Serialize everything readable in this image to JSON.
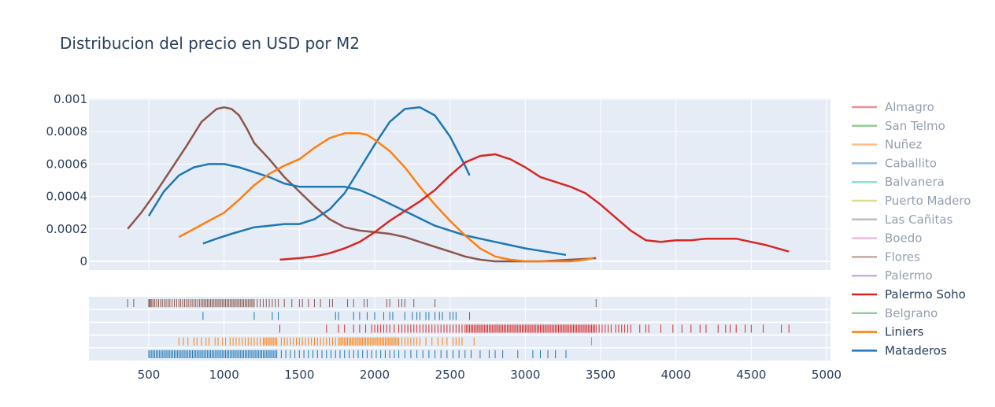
{
  "chart_data": {
    "type": "line",
    "title": "Distribucion del precio en USD por M2",
    "xlabel": "",
    "ylabel": "",
    "xlim": [
      0,
      5000
    ],
    "ylim": [
      0,
      0.001
    ],
    "x_ticks": [
      "500",
      "1000",
      "1500",
      "2000",
      "2500",
      "3000",
      "3500",
      "4000",
      "4500",
      "5000"
    ],
    "y_ticks": [
      "0",
      "0.0002",
      "0.0004",
      "0.0006",
      "0.0008",
      "0.001"
    ],
    "grid": true,
    "legend_position": "right",
    "legend": [
      {
        "name": "Almagro",
        "color": "#d62728",
        "visible": false
      },
      {
        "name": "San Telmo",
        "color": "#2ca02c",
        "visible": false
      },
      {
        "name": "Nuñez",
        "color": "#ff7f0e",
        "visible": false
      },
      {
        "name": "Caballito",
        "color": "#1f77b4",
        "visible": false
      },
      {
        "name": "Balvanera",
        "color": "#17becf",
        "visible": false
      },
      {
        "name": "Puerto Madero",
        "color": "#bcbd22",
        "visible": false
      },
      {
        "name": "Las Cañitas",
        "color": "#7f7f7f",
        "visible": false
      },
      {
        "name": "Boedo",
        "color": "#e377c2",
        "visible": false
      },
      {
        "name": "Flores",
        "color": "#8c564b",
        "visible": false
      },
      {
        "name": "Palermo",
        "color": "#9467bd",
        "visible": false
      },
      {
        "name": "Palermo Soho",
        "color": "#d62728",
        "visible": true
      },
      {
        "name": "Belgrano",
        "color": "#2ca02c",
        "visible": false
      },
      {
        "name": "Liniers",
        "color": "#ff7f0e",
        "visible": true
      },
      {
        "name": "Mataderos",
        "color": "#1f77b4",
        "visible": true
      }
    ],
    "series": [
      {
        "legend": "Flores",
        "color": "#8c564b",
        "x": [
          360,
          450,
          550,
          650,
          750,
          850,
          950,
          1000,
          1050,
          1100,
          1150,
          1200,
          1300,
          1400,
          1500,
          1600,
          1700,
          1800,
          1900,
          2000,
          2100,
          2200,
          2300,
          2400,
          2500,
          2600,
          2700,
          2800,
          2900,
          3000,
          3100,
          3200,
          3300,
          3400,
          3470
        ],
        "y": [
          0.0002,
          0.0003,
          0.00043,
          0.00057,
          0.00071,
          0.00086,
          0.00094,
          0.00095,
          0.00094,
          0.0009,
          0.00082,
          0.00073,
          0.00063,
          0.00052,
          0.00043,
          0.00034,
          0.00026,
          0.00021,
          0.00019,
          0.00018,
          0.00017,
          0.00015,
          0.00012,
          9e-05,
          6e-05,
          3e-05,
          1e-05,
          0.0,
          0.0,
          0.0,
          0.0,
          5e-06,
          1e-05,
          1.5e-05,
          2e-05
        ]
      },
      {
        "legend": "Mataderos",
        "color": "#1f77b4",
        "x": [
          500,
          600,
          700,
          800,
          900,
          1000,
          1100,
          1200,
          1300,
          1400,
          1500,
          1600,
          1700,
          1800,
          1900,
          2000,
          2200,
          2400,
          2600,
          2800,
          3000,
          3200,
          3270
        ],
        "y": [
          0.00028,
          0.00043,
          0.00053,
          0.00058,
          0.0006,
          0.0006,
          0.00058,
          0.00055,
          0.00052,
          0.00048,
          0.00046,
          0.00046,
          0.00046,
          0.00046,
          0.00044,
          0.0004,
          0.00031,
          0.00022,
          0.00016,
          0.00012,
          8e-05,
          5e-05,
          4e-05
        ]
      },
      {
        "legend": "Mataderos",
        "color": "#1f77b4",
        "x": [
          860,
          950,
          1050,
          1200,
          1300,
          1400,
          1500,
          1600,
          1700,
          1800,
          1900,
          2000,
          2100,
          2200,
          2300,
          2400,
          2500,
          2600,
          2630
        ],
        "y": [
          0.00011,
          0.00014,
          0.00017,
          0.00021,
          0.00022,
          0.00023,
          0.00023,
          0.00026,
          0.00032,
          0.00042,
          0.00057,
          0.00072,
          0.00086,
          0.00094,
          0.00095,
          0.0009,
          0.00077,
          0.00059,
          0.00053
        ]
      },
      {
        "legend": "Liniers",
        "color": "#ff7f0e",
        "x": [
          700,
          800,
          900,
          1000,
          1100,
          1200,
          1300,
          1400,
          1500,
          1600,
          1700,
          1800,
          1900,
          1950,
          2000,
          2100,
          2200,
          2300,
          2400,
          2500,
          2600,
          2700,
          2800,
          2900,
          3000,
          3100,
          3200,
          3300,
          3400,
          3450
        ],
        "y": [
          0.00015,
          0.0002,
          0.00025,
          0.0003,
          0.00038,
          0.00047,
          0.00054,
          0.00059,
          0.00063,
          0.0007,
          0.00076,
          0.00079,
          0.00079,
          0.00078,
          0.00075,
          0.00068,
          0.00058,
          0.00046,
          0.00035,
          0.00025,
          0.00016,
          8e-05,
          3e-05,
          1e-05,
          0.0,
          0.0,
          0.0,
          0.0,
          1e-05,
          2e-05
        ]
      },
      {
        "legend": "Palermo Soho",
        "color": "#d62728",
        "x": [
          1370,
          1500,
          1600,
          1700,
          1800,
          1900,
          2000,
          2100,
          2200,
          2300,
          2400,
          2500,
          2600,
          2700,
          2800,
          2900,
          3000,
          3100,
          3200,
          3300,
          3400,
          3500,
          3600,
          3700,
          3800,
          3900,
          4000,
          4100,
          4200,
          4300,
          4400,
          4500,
          4600,
          4750
        ],
        "y": [
          1e-05,
          2e-05,
          3e-05,
          5e-05,
          8e-05,
          0.00012,
          0.00018,
          0.00025,
          0.00031,
          0.00037,
          0.00044,
          0.00053,
          0.00061,
          0.00065,
          0.00066,
          0.00063,
          0.00058,
          0.00052,
          0.00049,
          0.00046,
          0.00042,
          0.00035,
          0.00027,
          0.00019,
          0.00013,
          0.00012,
          0.00013,
          0.00013,
          0.00014,
          0.00014,
          0.00014,
          0.00012,
          0.0001,
          6e-05
        ]
      }
    ],
    "rug": [
      {
        "legend": "Flores",
        "color": "#8c564b",
        "x": [
          360,
          400,
          500,
          505,
          512,
          520,
          530,
          540,
          552,
          565,
          578,
          590,
          603,
          615,
          628,
          640,
          655,
          670,
          685,
          700,
          712,
          725,
          738,
          750,
          762,
          775,
          788,
          800,
          812,
          825,
          838,
          850,
          860,
          870,
          880,
          890,
          900,
          910,
          920,
          930,
          940,
          950,
          960,
          970,
          980,
          990,
          1000,
          1010,
          1020,
          1030,
          1040,
          1050,
          1060,
          1070,
          1080,
          1090,
          1100,
          1110,
          1120,
          1130,
          1140,
          1150,
          1160,
          1170,
          1180,
          1190,
          1200,
          1220,
          1240,
          1260,
          1280,
          1300,
          1320,
          1340,
          1360,
          1400,
          1450,
          1500,
          1520,
          1560,
          1600,
          1640,
          1700,
          1720,
          1820,
          1860,
          1930,
          1950,
          2080,
          2100,
          2160,
          2180,
          2200,
          2260,
          2400,
          3470
        ]
      },
      {
        "legend": "Mataderos",
        "color": "#1f77b4",
        "x": [
          860,
          1200,
          1320,
          1360,
          1740,
          1760,
          1860,
          1900,
          1950,
          2000,
          2060,
          2100,
          2120,
          2200,
          2250,
          2280,
          2300,
          2340,
          2360,
          2400,
          2430,
          2450,
          2500,
          2520,
          2540,
          2630
        ]
      },
      {
        "legend": "Palermo Soho",
        "color": "#d62728",
        "x": [
          1370,
          1680,
          1760,
          1800,
          1860,
          1900,
          1940,
          1980,
          2000,
          2020,
          2040,
          2060,
          2080,
          2100,
          2130,
          2160,
          2180,
          2200,
          2220,
          2240,
          2260,
          2280,
          2300,
          2320,
          2340,
          2360,
          2380,
          2400,
          2420,
          2440,
          2460,
          2480,
          2500,
          2520,
          2540,
          2560,
          2580,
          2600,
          2610,
          2620,
          2630,
          2640,
          2650,
          2660,
          2670,
          2680,
          2690,
          2700,
          2710,
          2720,
          2730,
          2740,
          2750,
          2760,
          2770,
          2780,
          2790,
          2800,
          2810,
          2820,
          2830,
          2840,
          2850,
          2860,
          2870,
          2880,
          2890,
          2900,
          2910,
          2920,
          2930,
          2940,
          2950,
          2960,
          2970,
          2980,
          2990,
          3000,
          3010,
          3020,
          3030,
          3040,
          3050,
          3060,
          3070,
          3080,
          3090,
          3100,
          3110,
          3120,
          3130,
          3140,
          3150,
          3160,
          3170,
          3180,
          3190,
          3200,
          3210,
          3220,
          3230,
          3240,
          3250,
          3260,
          3270,
          3280,
          3290,
          3300,
          3310,
          3320,
          3330,
          3340,
          3350,
          3360,
          3370,
          3380,
          3390,
          3400,
          3410,
          3420,
          3430,
          3440,
          3450,
          3460,
          3470,
          3490,
          3510,
          3530,
          3550,
          3570,
          3600,
          3620,
          3640,
          3660,
          3680,
          3700,
          3760,
          3800,
          3820,
          3900,
          3980,
          4040,
          4100,
          4160,
          4200,
          4280,
          4330,
          4360,
          4400,
          4460,
          4500,
          4580,
          4700,
          4750
        ]
      },
      {
        "legend": "Liniers",
        "color": "#ff7f0e",
        "x": [
          700,
          730,
          760,
          800,
          820,
          850,
          880,
          900,
          940,
          960,
          990,
          1010,
          1040,
          1060,
          1080,
          1100,
          1120,
          1140,
          1160,
          1180,
          1200,
          1220,
          1240,
          1260,
          1270,
          1280,
          1290,
          1300,
          1310,
          1320,
          1330,
          1340,
          1350,
          1380,
          1400,
          1420,
          1440,
          1460,
          1480,
          1500,
          1520,
          1540,
          1560,
          1580,
          1600,
          1620,
          1640,
          1660,
          1680,
          1700,
          1720,
          1740,
          1760,
          1770,
          1780,
          1790,
          1800,
          1810,
          1820,
          1830,
          1840,
          1850,
          1860,
          1870,
          1880,
          1890,
          1900,
          1910,
          1920,
          1930,
          1940,
          1950,
          1960,
          1970,
          1980,
          1990,
          2000,
          2010,
          2020,
          2030,
          2040,
          2050,
          2060,
          2070,
          2080,
          2090,
          2100,
          2110,
          2120,
          2130,
          2140,
          2150,
          2160,
          2180,
          2200,
          2220,
          2240,
          2260,
          2280,
          2300,
          2340,
          2380,
          2420,
          2450,
          2480,
          2520,
          2540,
          2560,
          2580,
          2660,
          3440
        ]
      },
      {
        "legend": "Mataderos",
        "color": "#1f77b4",
        "x": [
          500,
          510,
          520,
          530,
          540,
          550,
          560,
          570,
          580,
          590,
          600,
          610,
          620,
          630,
          640,
          650,
          660,
          670,
          680,
          690,
          700,
          710,
          720,
          730,
          740,
          750,
          760,
          770,
          780,
          790,
          800,
          810,
          820,
          830,
          840,
          850,
          860,
          870,
          880,
          890,
          900,
          910,
          920,
          930,
          940,
          950,
          960,
          970,
          980,
          990,
          1000,
          1010,
          1020,
          1030,
          1040,
          1050,
          1060,
          1070,
          1080,
          1090,
          1100,
          1110,
          1120,
          1130,
          1140,
          1150,
          1160,
          1170,
          1180,
          1190,
          1200,
          1210,
          1220,
          1230,
          1240,
          1250,
          1260,
          1270,
          1280,
          1290,
          1300,
          1310,
          1320,
          1330,
          1340,
          1350,
          1380,
          1410,
          1440,
          1470,
          1500,
          1530,
          1560,
          1590,
          1620,
          1650,
          1680,
          1710,
          1740,
          1770,
          1800,
          1830,
          1860,
          1890,
          1920,
          1950,
          1980,
          2010,
          2040,
          2070,
          2100,
          2130,
          2160,
          2200,
          2240,
          2280,
          2320,
          2360,
          2400,
          2440,
          2480,
          2520,
          2560,
          2600,
          2640,
          2700,
          2760,
          2800,
          2850,
          2950,
          3050,
          3100,
          3150,
          3200,
          3270
        ]
      }
    ]
  }
}
